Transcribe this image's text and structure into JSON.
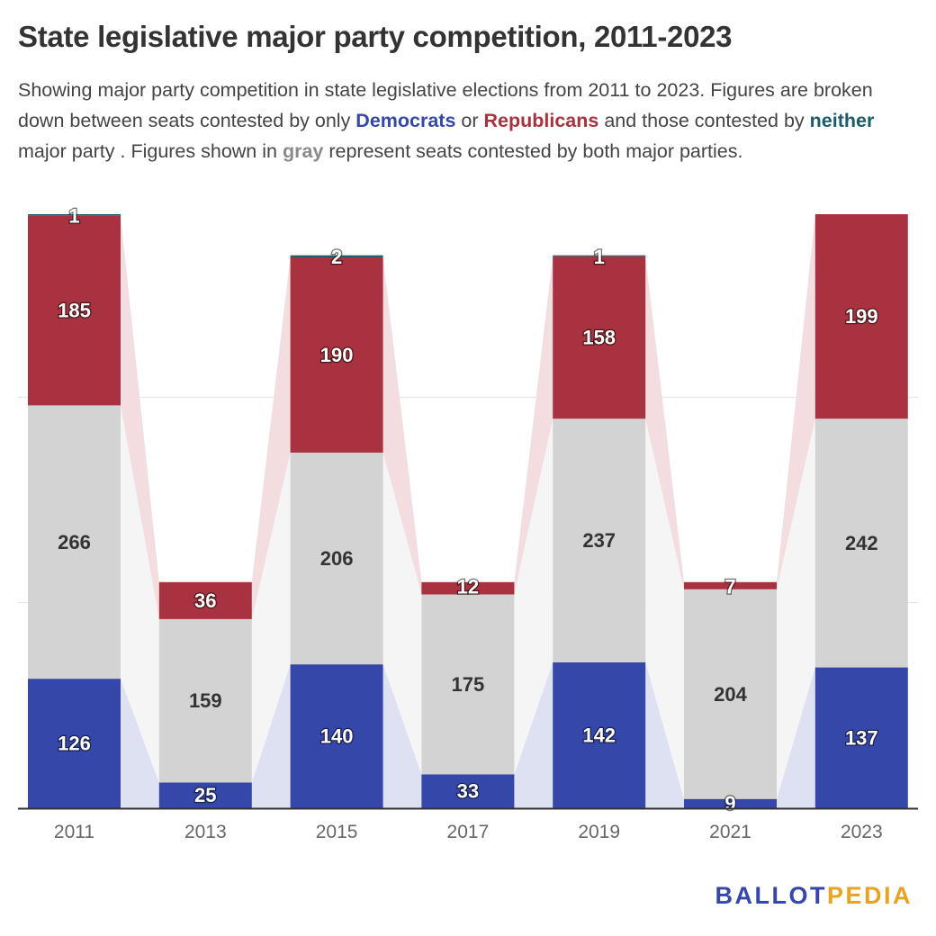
{
  "title": "State legislative major party competition, 2011-2023",
  "subtitle": {
    "part1": "Showing major party competition in state legislative elections from 2011 to 2023. Figures are broken down between seats contested by only ",
    "democrats": "Democrats",
    "part2": " or ",
    "republicans": "Republicans",
    "part3": " and those contested by ",
    "neither": "neither",
    "part4": " major party . Figures shown in ",
    "gray": "gray",
    "part5": " represent seats contested by both major parties."
  },
  "logo": {
    "part1": "BALLOT",
    "part2": "PEDIA"
  },
  "colors": {
    "democrats": "#3547a8",
    "republicans": "#a8323f",
    "both": "#d3d3d3",
    "neither": "#1c5c68",
    "dem_band": "#dde1f2",
    "rep_band": "#f3dde0",
    "both_band": "#f5f5f5"
  },
  "chart_data": {
    "type": "bar",
    "stacked": true,
    "categories": [
      "2011",
      "2013",
      "2015",
      "2017",
      "2019",
      "2021",
      "2023"
    ],
    "series": [
      {
        "name": "Democrats",
        "values": [
          126,
          25,
          140,
          33,
          142,
          9,
          137
        ]
      },
      {
        "name": "Both",
        "values": [
          266,
          159,
          206,
          175,
          237,
          204,
          242
        ]
      },
      {
        "name": "Republicans",
        "values": [
          185,
          36,
          190,
          12,
          158,
          7,
          199
        ]
      },
      {
        "name": "Neither",
        "values": [
          1,
          0,
          2,
          0,
          1,
          0,
          0
        ]
      }
    ],
    "ylim": [
      0,
      578
    ],
    "grid": true
  }
}
